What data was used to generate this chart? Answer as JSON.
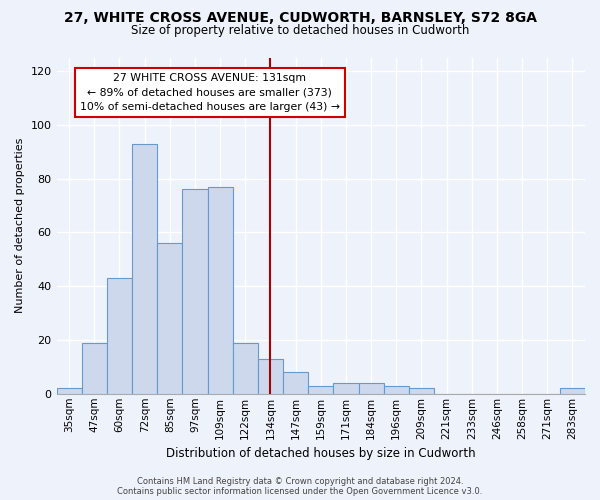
{
  "title": "27, WHITE CROSS AVENUE, CUDWORTH, BARNSLEY, S72 8GA",
  "subtitle": "Size of property relative to detached houses in Cudworth",
  "xlabel": "Distribution of detached houses by size in Cudworth",
  "ylabel": "Number of detached properties",
  "bar_labels": [
    "35sqm",
    "47sqm",
    "60sqm",
    "72sqm",
    "85sqm",
    "97sqm",
    "109sqm",
    "122sqm",
    "134sqm",
    "147sqm",
    "159sqm",
    "171sqm",
    "184sqm",
    "196sqm",
    "209sqm",
    "221sqm",
    "233sqm",
    "246sqm",
    "258sqm",
    "271sqm",
    "283sqm"
  ],
  "bar_values": [
    2,
    19,
    43,
    93,
    56,
    76,
    77,
    19,
    13,
    8,
    3,
    4,
    4,
    3,
    2,
    0,
    0,
    0,
    0,
    0,
    2
  ],
  "bar_color": "#cdd8ed",
  "bar_edge_color": "#6699cc",
  "vline_index": 8,
  "vline_color": "#aa0000",
  "annotation_text": "27 WHITE CROSS AVENUE: 131sqm\n← 89% of detached houses are smaller (373)\n10% of semi-detached houses are larger (43) →",
  "annotation_box_color": "#ffffff",
  "annotation_box_edge_color": "#cc0000",
  "ylim": [
    0,
    125
  ],
  "yticks": [
    0,
    20,
    40,
    60,
    80,
    100,
    120
  ],
  "footer": "Contains HM Land Registry data © Crown copyright and database right 2024.\nContains public sector information licensed under the Open Government Licence v3.0.",
  "background_color": "#eef2fa",
  "plot_bg_color": "#eef2fa",
  "grid_color": "#ffffff"
}
